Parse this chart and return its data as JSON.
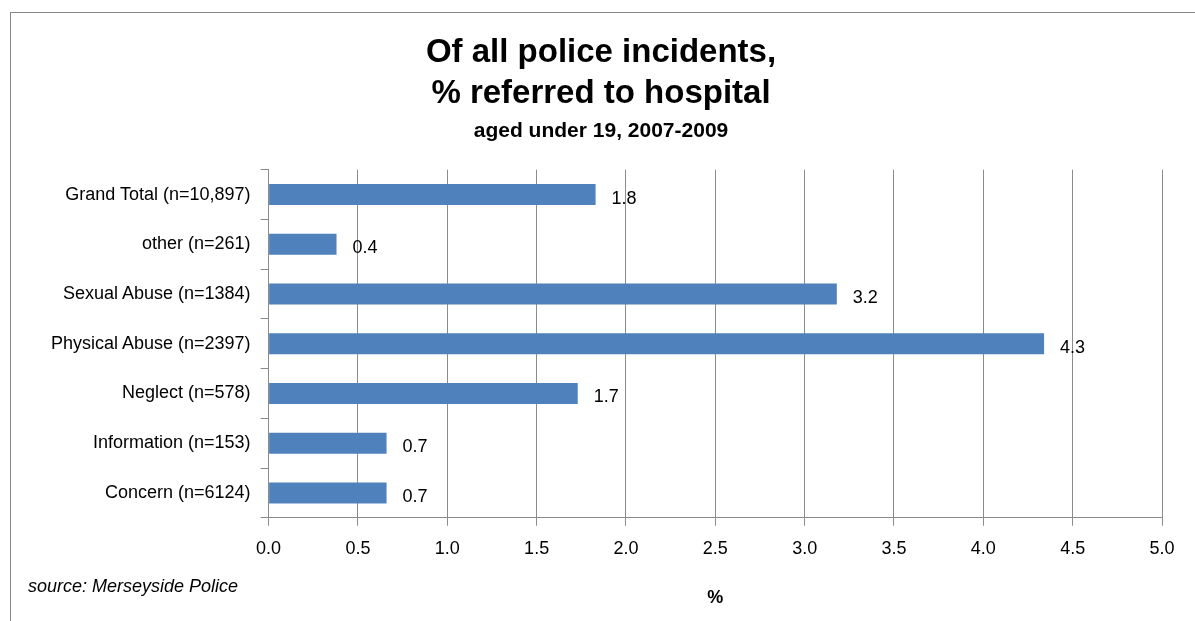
{
  "chart_data": {
    "type": "bar",
    "orientation": "horizontal",
    "title": "Of all police incidents,\n% referred to hospital",
    "subtitle": "aged under 19, 2007-2009",
    "xlabel": "%",
    "categories": [
      "Grand Total (n=10,897)",
      "other (n=261)",
      "Sexual Abuse (n=1384)",
      "Physical Abuse (n=2397)",
      "Neglect (n=578)",
      "Information (n=153)",
      "Concern (n=6124)"
    ],
    "values": [
      1.83,
      0.38,
      3.18,
      4.34,
      1.73,
      0.66,
      0.66
    ],
    "value_labels": [
      "1.8",
      "0.4",
      "3.2",
      "4.3",
      "1.7",
      "0.7",
      "0.7"
    ],
    "color": "#4f81bd",
    "xlim": [
      0,
      5
    ],
    "xticks": [
      {
        "value": 0,
        "label": "0.0"
      },
      {
        "value": 0.5,
        "label": "0.5"
      },
      {
        "value": 1,
        "label": "1.0"
      },
      {
        "value": 1.5,
        "label": "1.5"
      },
      {
        "value": 2,
        "label": "2.0"
      },
      {
        "value": 2.5,
        "label": "2.5"
      },
      {
        "value": 3,
        "label": "3.0"
      },
      {
        "value": 3.5,
        "label": "3.5"
      },
      {
        "value": 4,
        "label": "4.0"
      },
      {
        "value": 4.5,
        "label": "4.5"
      },
      {
        "value": 5,
        "label": "5.0"
      }
    ],
    "grid": "x",
    "legend": false,
    "annotations": [
      "source: Merseyside Police"
    ]
  }
}
